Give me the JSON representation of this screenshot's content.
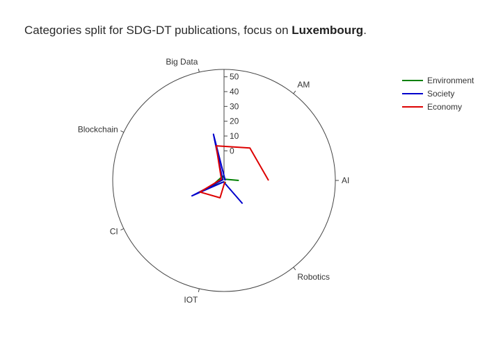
{
  "title": {
    "prefix": "Categories split for SDG-DT publications, focus on ",
    "bold": "Luxembourg",
    "suffix": "."
  },
  "chart_data": {
    "type": "polar-line",
    "categories": [
      "AI",
      "AM",
      "Big Data",
      "Blockchain",
      "CI",
      "IOT",
      "Robotics"
    ],
    "radial_axis": {
      "range": [
        -20,
        55
      ],
      "tick_values": [
        0,
        10,
        20,
        30,
        40,
        50
      ],
      "tick_labels": [
        "0",
        "10",
        "20",
        "30",
        "40",
        "50"
      ]
    },
    "series": [
      {
        "name": "Environment",
        "color": "#008000",
        "values": [
          -10,
          -19,
          -17,
          -17,
          -10,
          -19,
          -18
        ]
      },
      {
        "name": "Society",
        "color": "#0000cc",
        "values": [
          -19,
          -19,
          12,
          -19,
          4,
          -19,
          0
        ]
      },
      {
        "name": "Economy",
        "color": "#dd0000",
        "values": [
          10,
          8,
          4,
          -18,
          -2,
          -8,
          -19
        ]
      }
    ],
    "legend_position": "top-right"
  }
}
